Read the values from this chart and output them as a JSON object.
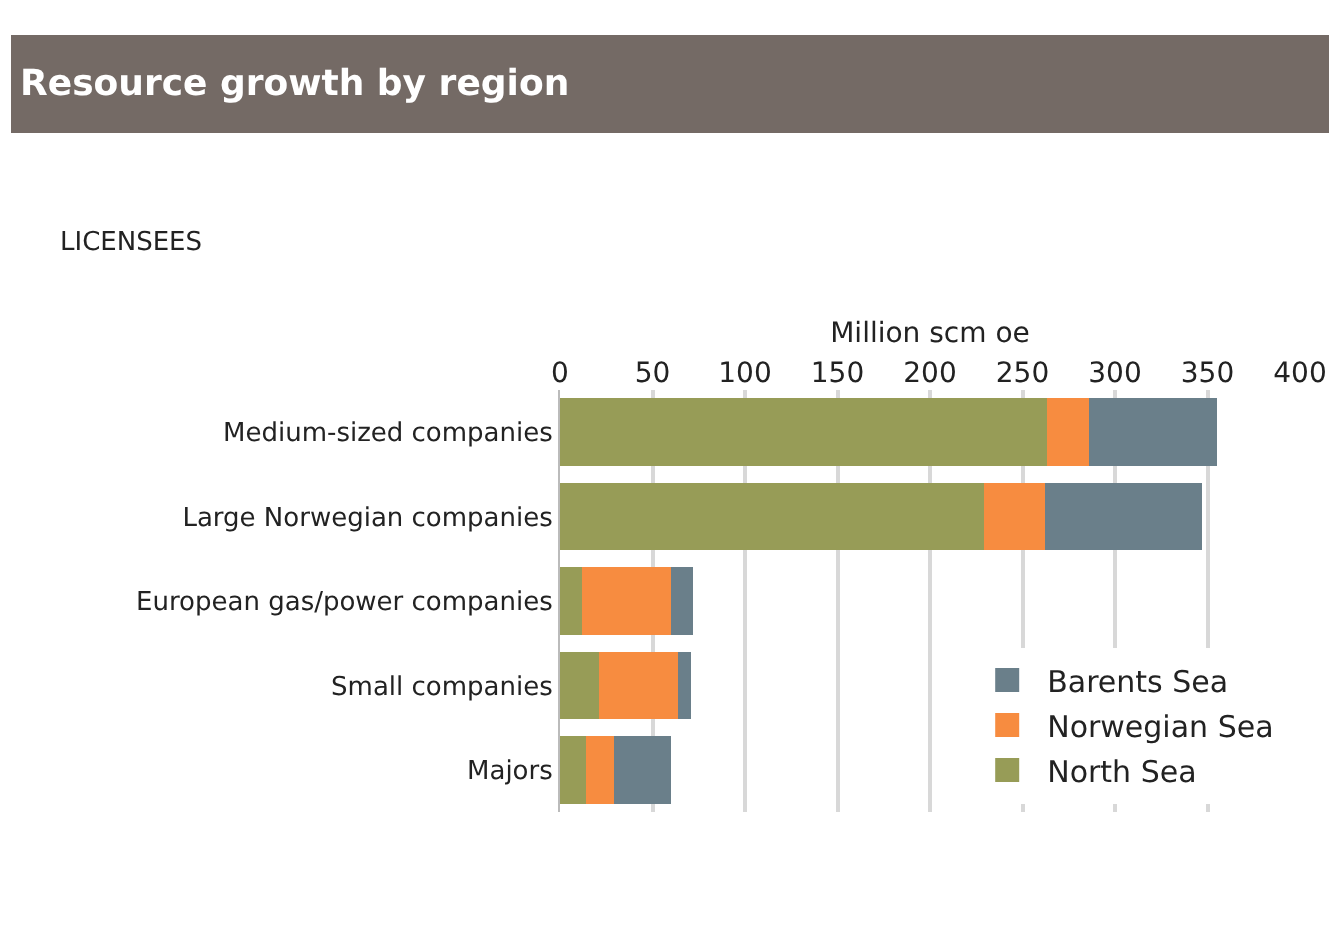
{
  "chart_data": {
    "type": "bar",
    "orientation": "horizontal",
    "stacked": true,
    "title": "Resource growth by region",
    "subtitle": "LICENSEES",
    "xlabel": "Million scm oe",
    "categories": [
      "Medium-sized companies",
      "Large Norwegian companies",
      "European gas/power companies",
      "Small companies",
      "Majors"
    ],
    "series": [
      {
        "name": "North Sea",
        "color": "#979c57",
        "values": [
          263,
          229,
          12,
          21,
          14
        ]
      },
      {
        "name": "Norwegian Sea",
        "color": "#f78c40",
        "values": [
          23,
          33,
          48,
          43,
          15
        ]
      },
      {
        "name": "Barents Sea",
        "color": "#6a7f8a",
        "values": [
          69,
          85,
          12,
          7,
          31
        ]
      }
    ],
    "xlim": [
      0,
      400
    ],
    "xticks": [
      0,
      50,
      100,
      150,
      200,
      250,
      300,
      350,
      400
    ],
    "grid": "x",
    "legend": "bottom right"
  }
}
